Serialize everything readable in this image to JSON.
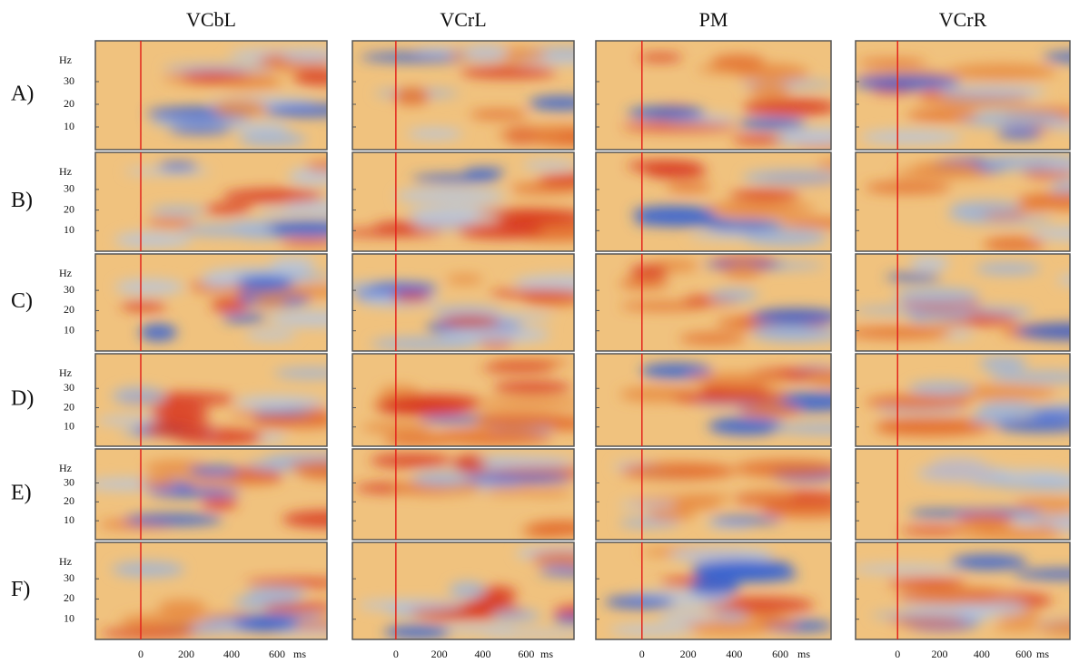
{
  "figure": {
    "columns": [
      "VCbL",
      "VCrL",
      "PM",
      "VCrR"
    ],
    "rows": [
      "A)",
      "B)",
      "C)",
      "D)",
      "E)",
      "F)"
    ],
    "y_unit": "Hz",
    "yticks": [
      10,
      20,
      30
    ],
    "ylim": [
      0,
      48
    ],
    "x_unit": "ms",
    "xticks": [
      0,
      200,
      400,
      600
    ],
    "xlim": [
      -200,
      820
    ]
  }
}
